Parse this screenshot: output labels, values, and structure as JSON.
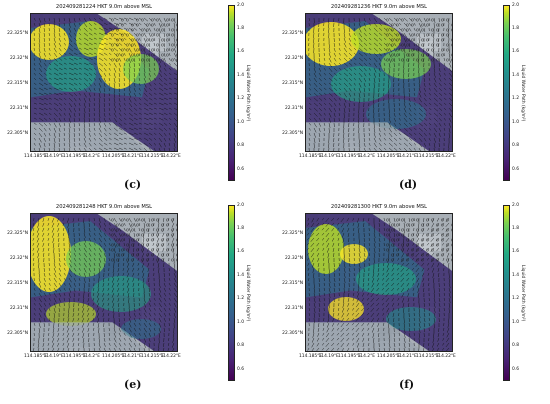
{
  "panels": [
    {
      "title": "202409281224 HKT 9.0m above MSL",
      "caption": "(c)"
    },
    {
      "title": "202409281236 HKT 9.0m above MSL",
      "caption": "(d)"
    },
    {
      "title": "202409281248 HKT 9.0m above MSL",
      "caption": "(e)"
    },
    {
      "title": "202409281300 HKT 9.0m above MSL",
      "caption": "(f)"
    }
  ],
  "yticks": [
    "22.325°N",
    "22.32°N",
    "22.315°N",
    "22.31°N",
    "22.305°N"
  ],
  "xticks": [
    "114.185°E",
    "114.19°E",
    "114.195°E",
    "114.2°E",
    "114.205°E",
    "114.21°E",
    "114.215°E",
    "114.22°E"
  ],
  "colorbar": {
    "label": "Liquid Water Path (kg/m²)",
    "ticks": [
      "2.0",
      "1.8",
      "1.6",
      "1.4",
      "1.2",
      "1.0",
      "0.8",
      "0.6"
    ],
    "min": 0.5,
    "max": 2.0
  },
  "colors": {
    "low": "#440154",
    "mid": "#21918c",
    "high": "#fde725",
    "land": "#9aa3ad"
  }
}
